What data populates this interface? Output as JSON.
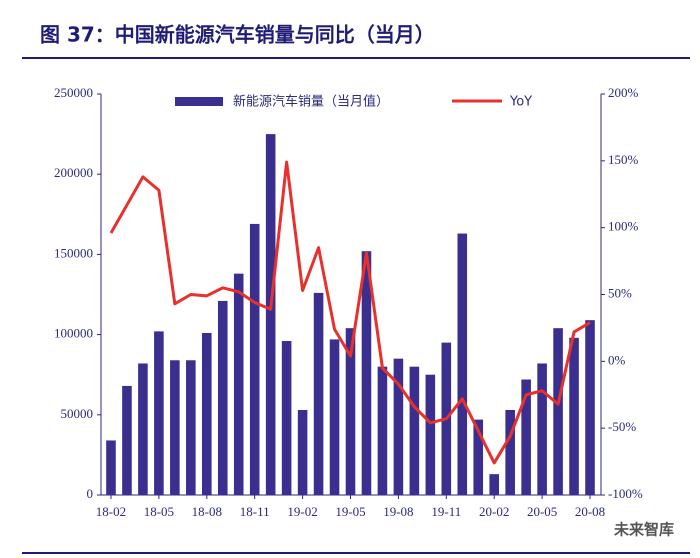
{
  "chart_data": {
    "type": "bar_line",
    "title": "图 37：中国新能源汽车销量与同比（当月）",
    "watermark": "未来智库",
    "categories": [
      "18-02",
      null,
      null,
      "18-05",
      null,
      null,
      "18-08",
      null,
      null,
      "18-11",
      null,
      null,
      "19-02",
      null,
      null,
      "19-05",
      null,
      null,
      "19-08",
      null,
      null,
      "19-11",
      null,
      null,
      "20-02",
      null,
      null,
      "20-05",
      null,
      null,
      "20-08"
    ],
    "series": [
      {
        "name": "新能源汽车销量（当月值）",
        "type": "bar",
        "color": "#3a2f8e",
        "axis": "y",
        "values": [
          34000,
          68000,
          82000,
          102000,
          84000,
          84000,
          101000,
          121000,
          138000,
          169000,
          225000,
          96000,
          53000,
          126000,
          97000,
          104000,
          152000,
          80000,
          85000,
          80000,
          75000,
          95000,
          163000,
          47000,
          13000,
          53000,
          72000,
          82000,
          104000,
          98000,
          109000
        ]
      },
      {
        "name": "YoY",
        "type": "line",
        "color": "#e8302c",
        "axis": "y2",
        "values": [
          96,
          117,
          138,
          128,
          43,
          50,
          49,
          55,
          52,
          44,
          39,
          149,
          53,
          85,
          24,
          4,
          81,
          -5,
          -17,
          -34,
          -46,
          -43,
          -28,
          -52,
          -76,
          -56,
          -25,
          -22,
          -32,
          22,
          29
        ]
      }
    ],
    "ylim": [
      0,
      250000
    ],
    "yticks": [
      0,
      50000,
      100000,
      150000,
      200000,
      250000
    ],
    "y2lim": [
      -100,
      200
    ],
    "y2ticks": [
      {
        "value": -100,
        "label": "-100%"
      },
      {
        "value": -50,
        "label": "-50%"
      },
      {
        "value": 0,
        "label": "0%"
      },
      {
        "value": 50,
        "label": "50%"
      },
      {
        "value": 100,
        "label": "100%"
      },
      {
        "value": 150,
        "label": "150%"
      },
      {
        "value": 200,
        "label": "200%"
      }
    ],
    "legend": "top"
  }
}
